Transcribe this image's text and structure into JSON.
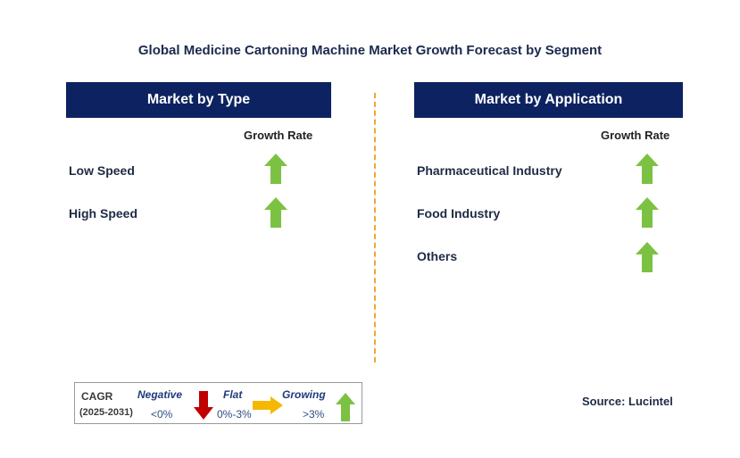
{
  "title": "Global Medicine Cartoning Machine Market Growth Forecast by Segment",
  "left_panel": {
    "header": "Market by Type",
    "column_header": "Growth Rate",
    "rows": [
      {
        "label": "Low Speed",
        "trend": "growing"
      },
      {
        "label": "High Speed",
        "trend": "growing"
      }
    ]
  },
  "right_panel": {
    "header": "Market by Application",
    "column_header": "Growth Rate",
    "rows": [
      {
        "label": "Pharmaceutical Industry",
        "trend": "growing"
      },
      {
        "label": "Food Industry",
        "trend": "growing"
      },
      {
        "label": "Others",
        "trend": "growing"
      }
    ]
  },
  "legend": {
    "cagr_label": "CAGR",
    "period": "(2025-2031)",
    "negative_label": "Negative",
    "negative_range": "<0%",
    "flat_label": "Flat",
    "flat_range": "0%-3%",
    "growing_label": "Growing",
    "growing_range": ">3%"
  },
  "source": "Source: Lucintel",
  "colors": {
    "header_bg": "#0d2260",
    "growing_arrow": "#7cc242",
    "negative_arrow": "#c00000",
    "flat_arrow": "#f5b800",
    "divider": "#f0a830"
  }
}
